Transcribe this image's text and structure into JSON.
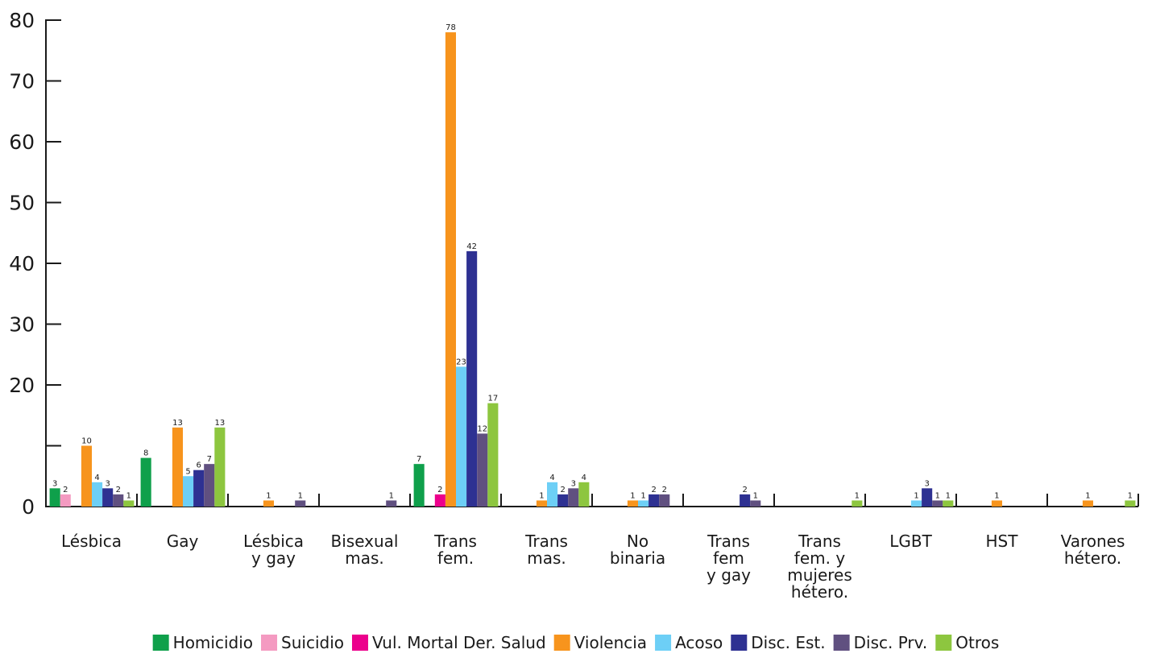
{
  "chart_data": {
    "type": "bar",
    "title": "",
    "xlabel": "",
    "ylabel": "",
    "ylim": [
      0,
      80
    ],
    "y_ticks": [
      "0",
      "",
      "20",
      "30",
      "40",
      "50",
      "60",
      "70",
      "80"
    ],
    "grid": false,
    "legend_position": "bottom",
    "categories": [
      [
        "Lésbica"
      ],
      [
        "Gay"
      ],
      [
        "Lésbica",
        "y gay"
      ],
      [
        "Bisexual",
        "mas."
      ],
      [
        "Trans",
        "fem."
      ],
      [
        "Trans",
        "mas."
      ],
      [
        "No",
        "binaria"
      ],
      [
        "Trans",
        "fem",
        "y gay"
      ],
      [
        "Trans",
        "fem. y",
        "mujeres",
        "hétero."
      ],
      [
        "LGBT"
      ],
      [
        "HST"
      ],
      [
        "Varones",
        "hétero."
      ]
    ],
    "series": [
      {
        "name": "Homicidio",
        "color": "#0fa04b",
        "values": [
          3,
          8,
          null,
          null,
          7,
          null,
          null,
          null,
          null,
          null,
          null,
          null
        ]
      },
      {
        "name": "Suicidio",
        "color": "#f49ac1",
        "values": [
          2,
          null,
          null,
          null,
          null,
          null,
          null,
          null,
          null,
          null,
          null,
          null
        ]
      },
      {
        "name": "Vul. Mortal Der. Salud",
        "color": "#ec008c",
        "values": [
          null,
          null,
          null,
          null,
          2,
          null,
          null,
          null,
          null,
          null,
          null,
          null
        ]
      },
      {
        "name": "Violencia",
        "color": "#f7941d",
        "values": [
          10,
          13,
          1,
          null,
          78,
          1,
          1,
          null,
          null,
          null,
          1,
          1
        ]
      },
      {
        "name": "Acoso",
        "color": "#6dcff6",
        "values": [
          4,
          5,
          null,
          null,
          23,
          4,
          1,
          null,
          null,
          1,
          null,
          null
        ]
      },
      {
        "name": "Disc. Est.",
        "color": "#2e3192",
        "values": [
          3,
          6,
          null,
          null,
          42,
          2,
          2,
          2,
          null,
          3,
          null,
          null
        ]
      },
      {
        "name": "Disc. Prv.",
        "color": "#605080",
        "values": [
          2,
          7,
          1,
          1,
          12,
          3,
          2,
          1,
          null,
          1,
          null,
          null
        ]
      },
      {
        "name": "Otros",
        "color": "#8dc63f",
        "values": [
          1,
          13,
          null,
          null,
          17,
          4,
          null,
          null,
          1,
          1,
          null,
          1
        ]
      }
    ]
  }
}
